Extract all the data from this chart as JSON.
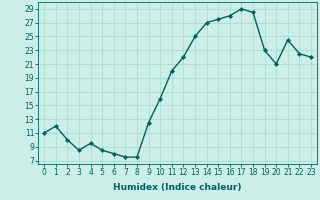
{
  "x": [
    0,
    1,
    2,
    3,
    4,
    5,
    6,
    7,
    8,
    9,
    10,
    11,
    12,
    13,
    14,
    15,
    16,
    17,
    18,
    19,
    20,
    21,
    22,
    23
  ],
  "y": [
    11,
    12,
    10,
    8.5,
    9.5,
    8.5,
    8,
    7.5,
    7.5,
    12.5,
    16,
    20,
    22,
    25,
    27,
    27.5,
    28,
    29,
    28.5,
    23,
    21,
    24.5,
    22.5,
    22
  ],
  "line_color": "#006060",
  "marker": "D",
  "marker_size": 2,
  "bg_color": "#cceee8",
  "grid_color": "#aaddcc",
  "xlabel": "Humidex (Indice chaleur)",
  "xlim": [
    -0.5,
    23.5
  ],
  "ylim": [
    6.5,
    30
  ],
  "yticks": [
    7,
    9,
    11,
    13,
    15,
    17,
    19,
    21,
    23,
    25,
    27,
    29
  ],
  "xticks": [
    0,
    1,
    2,
    3,
    4,
    5,
    6,
    7,
    8,
    9,
    10,
    11,
    12,
    13,
    14,
    15,
    16,
    17,
    18,
    19,
    20,
    21,
    22,
    23
  ],
  "label_fontsize": 6.5,
  "tick_fontsize": 5.5
}
